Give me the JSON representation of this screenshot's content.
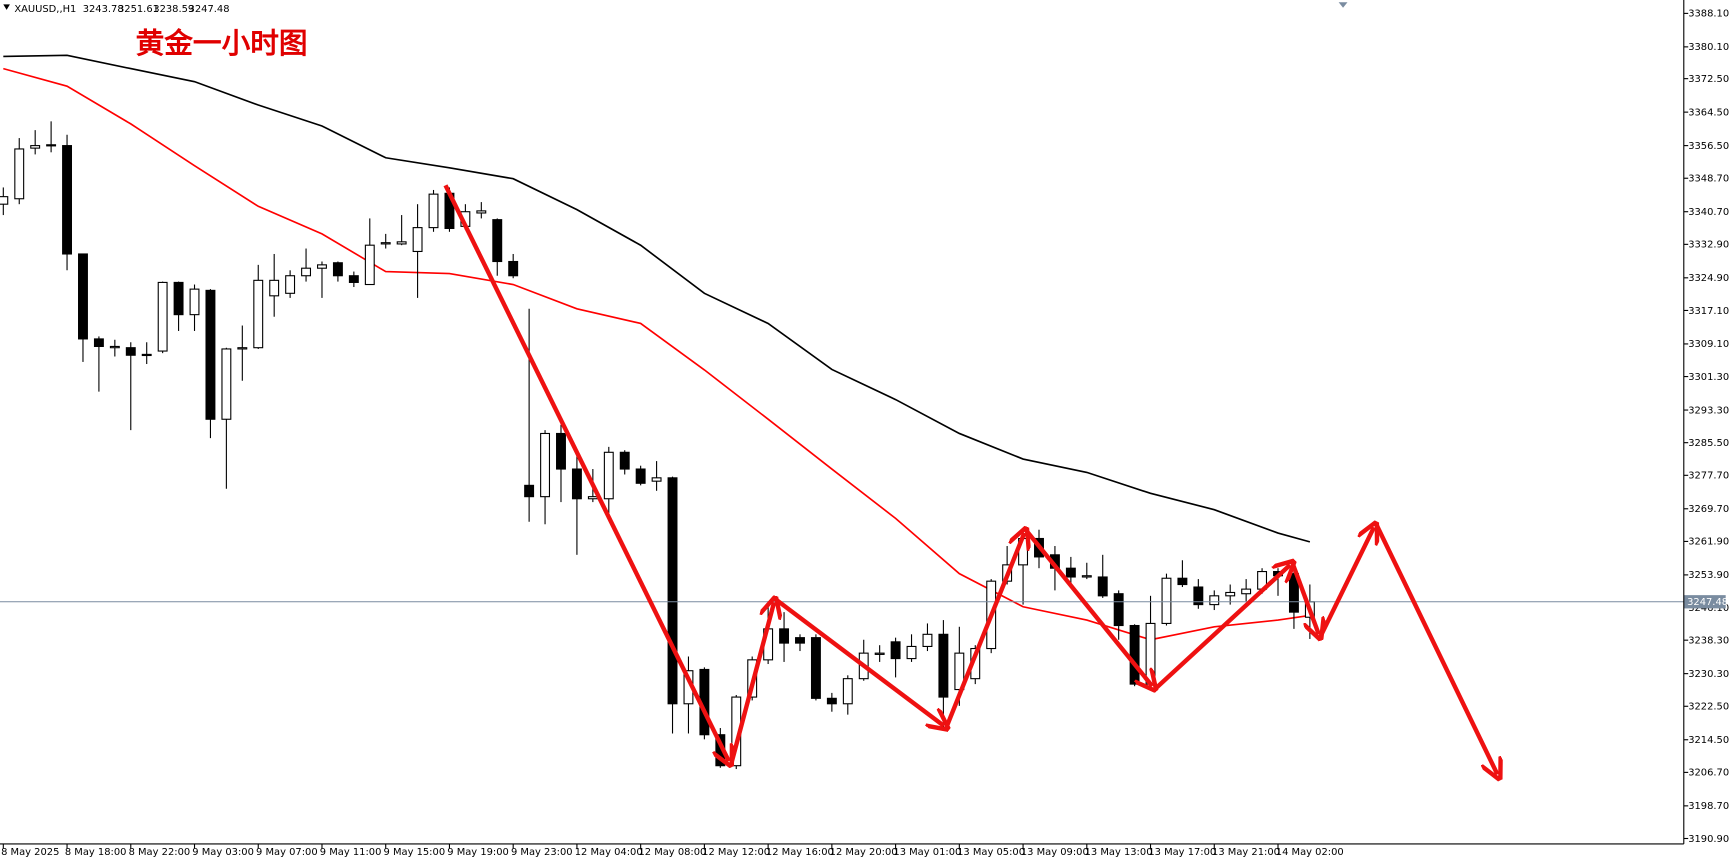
{
  "chart_data": {
    "type": "candlestick",
    "symbol": "XAUUSD,,H1",
    "annotation": "黄金一小时图",
    "categories": [
      "8 May 2025",
      null,
      null,
      null,
      "8 May 18:00",
      null,
      null,
      null,
      "8 May 22:00",
      null,
      null,
      null,
      "9 May 03:00",
      null,
      null,
      null,
      "9 May 07:00",
      null,
      null,
      null,
      "9 May 11:00",
      null,
      null,
      null,
      "9 May 15:00",
      null,
      null,
      null,
      "9 May 19:00",
      null,
      null,
      null,
      "9 May 23:00",
      null,
      null,
      null,
      "12 May 04:00",
      null,
      null,
      null,
      "12 May 08:00",
      null,
      null,
      null,
      "12 May 12:00",
      null,
      null,
      null,
      "12 May 16:00",
      null,
      null,
      null,
      "12 May 20:00",
      null,
      null,
      null,
      "13 May 01:00",
      null,
      null,
      null,
      "13 May 05:00",
      null,
      null,
      null,
      "13 May 09:00",
      null,
      null,
      null,
      "13 May 13:00",
      null,
      null,
      null,
      "13 May 17:00",
      null,
      null,
      null,
      "13 May 21:00",
      null,
      null,
      null,
      "14 May 02:00",
      null,
      null
    ],
    "open": [
      3342.5,
      3343.8,
      3355.9,
      3356.5,
      3356.5,
      3330.6,
      3310.3,
      3308.2,
      3308.2,
      3306.4,
      3307.4,
      3323.8,
      3316.1,
      3321.9,
      3291.1,
      3307.9,
      3308.2,
      3320.6,
      3321.2,
      3325.4,
      3327.2,
      3328.5,
      3325.4,
      3323.3,
      3333.0,
      3333.0,
      3331.2,
      3336.9,
      3345.1,
      3337.2,
      3340.4,
      3338.8,
      3328.8,
      3275.3,
      3272.6,
      3287.7,
      3279.2,
      3272.1,
      3272.1,
      3283.2,
      3279.2,
      3276.3,
      3277.1,
      3223.1,
      3231.3,
      3215.7,
      3208.3,
      3224.7,
      3233.6,
      3241.0,
      3238.9,
      3238.9,
      3224.4,
      3223.1,
      3229.1,
      3234.9,
      3237.9,
      3233.9,
      3236.8,
      3239.7,
      3226.5,
      3229.1,
      3236.3,
      3252.4,
      3256.3,
      3262.6,
      3258.7,
      3255.5,
      3253.4,
      3253.4,
      3249.4,
      3241.8,
      3227.8,
      3242.3,
      3253.1,
      3251.0,
      3246.8,
      3248.9,
      3249.4,
      3250.5,
      3254.7,
      3254.2,
      3243.78
    ],
    "high": [
      3346.5,
      3358.3,
      3360.2,
      3362.3,
      3359.1,
      3330.6,
      3310.9,
      3310.1,
      3309.5,
      3309.5,
      3324.0,
      3324.0,
      3323.3,
      3322.2,
      3308.2,
      3313.5,
      3328.0,
      3330.6,
      3326.7,
      3331.9,
      3328.8,
      3328.8,
      3326.4,
      3339.1,
      3335.4,
      3339.9,
      3342.5,
      3345.9,
      3346.5,
      3342.5,
      3343.0,
      3339.1,
      3330.6,
      3317.5,
      3288.5,
      3289.8,
      3283.2,
      3279.2,
      3284.5,
      3283.7,
      3280.0,
      3281.1,
      3277.4,
      3234.4,
      3231.8,
      3217.3,
      3225.2,
      3234.4,
      3247.6,
      3245.0,
      3239.7,
      3239.7,
      3225.7,
      3229.9,
      3238.4,
      3237.1,
      3238.9,
      3239.7,
      3242.3,
      3243.1,
      3241.5,
      3237.1,
      3252.9,
      3260.8,
      3264.7,
      3264.7,
      3260.8,
      3258.2,
      3256.8,
      3258.7,
      3250.2,
      3242.1,
      3248.9,
      3254.2,
      3257.4,
      3252.9,
      3250.2,
      3251.6,
      3252.9,
      3255.5,
      3255.5,
      3254.7,
      3251.61
    ],
    "low": [
      3339.9,
      3342.5,
      3354.4,
      3354.9,
      3326.7,
      3304.8,
      3297.7,
      3306.1,
      3288.5,
      3304.3,
      3306.9,
      3312.2,
      3312.2,
      3286.6,
      3274.5,
      3300.3,
      3307.9,
      3315.6,
      3320.1,
      3324.0,
      3320.1,
      3324.0,
      3322.7,
      3323.3,
      3331.9,
      3332.7,
      3320.1,
      3335.9,
      3335.9,
      3336.4,
      3339.1,
      3325.4,
      3324.8,
      3266.6,
      3266.0,
      3271.3,
      3258.7,
      3271.3,
      3268.7,
      3277.9,
      3275.3,
      3274.0,
      3216.0,
      3216.0,
      3214.6,
      3207.8,
      3207.5,
      3223.9,
      3232.6,
      3233.1,
      3235.7,
      3223.9,
      3221.2,
      3220.5,
      3228.6,
      3233.1,
      3229.4,
      3233.1,
      3235.7,
      3217.3,
      3222.6,
      3227.8,
      3235.2,
      3251.6,
      3246.8,
      3255.5,
      3250.2,
      3251.6,
      3252.9,
      3248.4,
      3238.4,
      3227.3,
      3226.5,
      3241.8,
      3251.0,
      3245.8,
      3245.5,
      3246.8,
      3247.6,
      3249.4,
      3248.9,
      3241.0,
      3238.59
    ],
    "close": [
      3344.3,
      3355.7,
      3356.5,
      3356.7,
      3330.6,
      3310.3,
      3308.5,
      3308.5,
      3306.4,
      3306.6,
      3323.8,
      3316.1,
      3322.2,
      3291.1,
      3307.9,
      3308.2,
      3324.3,
      3324.3,
      3325.4,
      3327.2,
      3328.0,
      3325.4,
      3323.8,
      3332.7,
      3333.3,
      3333.5,
      3336.9,
      3344.9,
      3336.7,
      3340.7,
      3340.9,
      3328.8,
      3325.4,
      3272.6,
      3287.7,
      3279.2,
      3272.1,
      3272.6,
      3283.2,
      3279.2,
      3275.8,
      3277.1,
      3223.1,
      3231.0,
      3215.7,
      3208.3,
      3224.7,
      3233.6,
      3241.0,
      3237.6,
      3237.6,
      3224.4,
      3223.1,
      3229.1,
      3235.2,
      3235.2,
      3233.9,
      3236.8,
      3239.7,
      3224.7,
      3235.2,
      3236.3,
      3252.4,
      3256.3,
      3262.6,
      3258.2,
      3255.5,
      3253.4,
      3253.7,
      3248.9,
      3241.8,
      3227.8,
      3242.3,
      3253.1,
      3251.6,
      3246.8,
      3248.9,
      3249.7,
      3250.5,
      3254.7,
      3253.7,
      3245.0,
      3247.48
    ],
    "bull_color": "#ffffff",
    "bear_color": "#000000",
    "moving_averages": [
      {
        "color": "#000000",
        "x": [
          0,
          4,
          8,
          12,
          16,
          20,
          24,
          28,
          32,
          36,
          40,
          44,
          48,
          52,
          56,
          60,
          64,
          68,
          72,
          76,
          80,
          82
        ],
        "values": [
          3377.8,
          3378.1,
          3374.9,
          3371.8,
          3366.2,
          3361.2,
          3353.6,
          3351.2,
          3348.6,
          3341.2,
          3332.7,
          3321.2,
          3314.0,
          3303.0,
          3295.8,
          3287.7,
          3281.6,
          3278.4,
          3273.4,
          3269.5,
          3263.9,
          3261.8
        ]
      },
      {
        "color": "#ff0000",
        "x": [
          0,
          4,
          8,
          12,
          16,
          20,
          24,
          28,
          32,
          36,
          40,
          44,
          48,
          52,
          56,
          60,
          64,
          68,
          72,
          76,
          80,
          82
        ],
        "values": [
          3374.9,
          3370.7,
          3361.7,
          3351.7,
          3342.0,
          3335.4,
          3326.4,
          3325.9,
          3323.3,
          3317.5,
          3314.0,
          3302.9,
          3291.1,
          3279.2,
          3267.4,
          3254.2,
          3246.3,
          3243.1,
          3238.4,
          3241.5,
          3243.1,
          3244.2
        ]
      }
    ],
    "ylim": [
      3189.6,
      3391.3
    ],
    "yticks": [
      {
        "value": 3388.1,
        "label": "3388.10"
      },
      {
        "value": 3380.1,
        "label": "3380.10"
      },
      {
        "value": 3372.5,
        "label": "3372.50"
      },
      {
        "value": 3364.5,
        "label": "3364.50"
      },
      {
        "value": 3356.5,
        "label": "3356.50"
      },
      {
        "value": 3348.7,
        "label": "3348.70"
      },
      {
        "value": 3340.7,
        "label": "3340.70"
      },
      {
        "value": 3332.9,
        "label": "3332.90"
      },
      {
        "value": 3324.9,
        "label": "3324.90"
      },
      {
        "value": 3317.1,
        "label": "3317.10"
      },
      {
        "value": 3309.1,
        "label": "3309.10"
      },
      {
        "value": 3301.3,
        "label": "3301.30"
      },
      {
        "value": 3293.3,
        "label": "3293.30"
      },
      {
        "value": 3285.5,
        "label": "3285.50"
      },
      {
        "value": 3277.7,
        "label": "3277.70"
      },
      {
        "value": 3269.7,
        "label": "3269.70"
      },
      {
        "value": 3261.9,
        "label": "3261.90"
      },
      {
        "value": 3253.9,
        "label": "3253.90"
      },
      {
        "value": 3246.1,
        "label": "3246.10"
      },
      {
        "value": 3238.3,
        "label": "3238.30"
      },
      {
        "value": 3230.3,
        "label": "3230.30"
      },
      {
        "value": 3222.5,
        "label": "3222.50"
      },
      {
        "value": 3214.5,
        "label": "3214.50"
      },
      {
        "value": 3206.7,
        "label": "3206.70"
      },
      {
        "value": 3198.7,
        "label": "3198.70"
      },
      {
        "value": 3190.9,
        "label": "3190.90"
      }
    ],
    "price_line_color": "#7a8ca0"
  }
}
